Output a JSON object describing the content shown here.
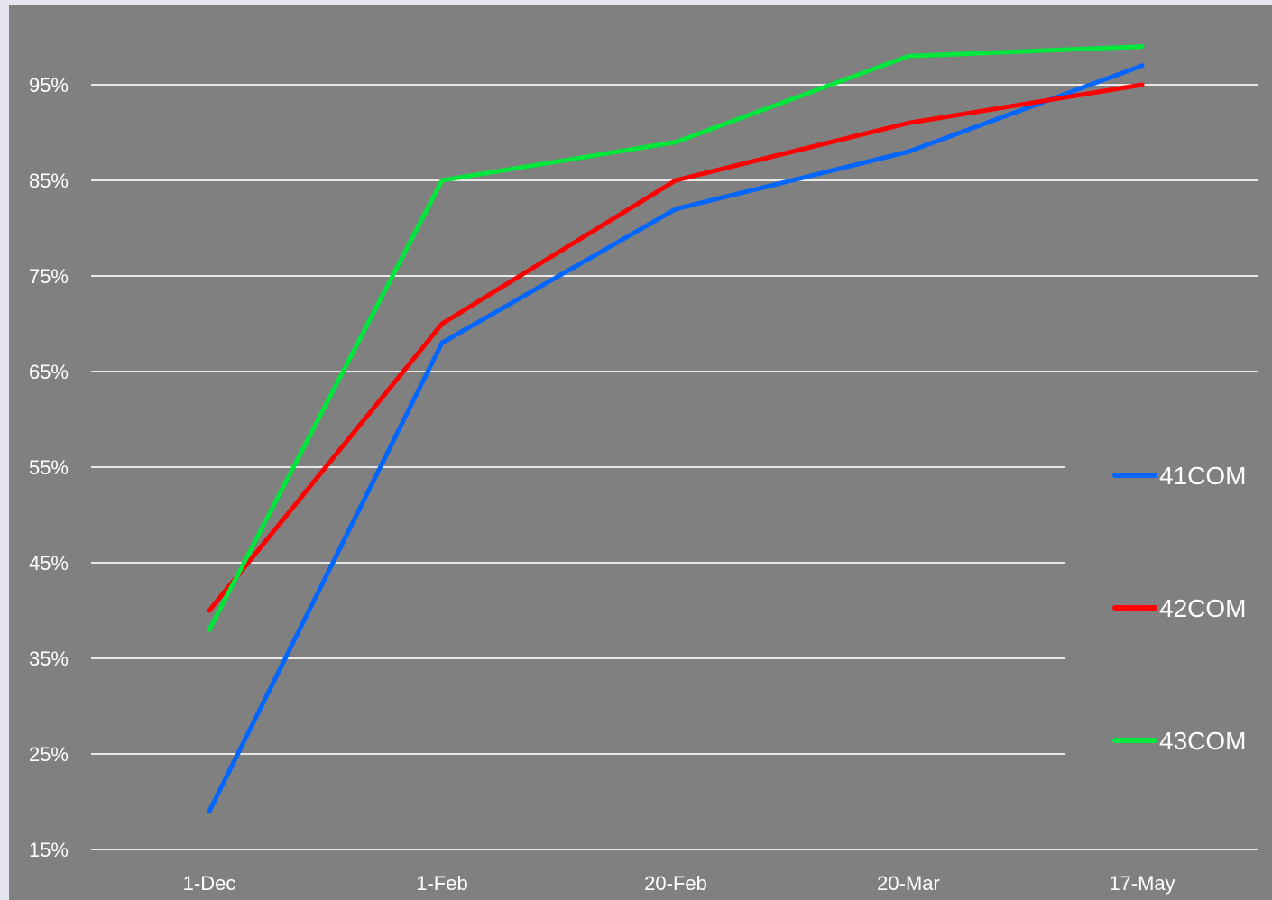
{
  "chart_data": {
    "type": "line",
    "title": "",
    "xlabel": "",
    "ylabel": "",
    "categories": [
      "1-Dec",
      "1-Feb",
      "20-Feb",
      "20-Mar",
      "17-May"
    ],
    "y_ticks": [
      "15%",
      "25%",
      "35%",
      "45%",
      "55%",
      "65%",
      "75%",
      "85%",
      "95%"
    ],
    "ylim": [
      15,
      100
    ],
    "grid": true,
    "legend_position": "right",
    "background_color": "#808080",
    "series": [
      {
        "name": "41COM",
        "color": "#0066ff",
        "values": [
          19,
          68,
          82,
          88,
          97
        ]
      },
      {
        "name": "42COM",
        "color": "#ff0000",
        "values": [
          40,
          70,
          85,
          91,
          95
        ]
      },
      {
        "name": "43COM",
        "color": "#00e63c",
        "values": [
          38,
          85,
          89,
          98,
          99
        ]
      }
    ]
  }
}
